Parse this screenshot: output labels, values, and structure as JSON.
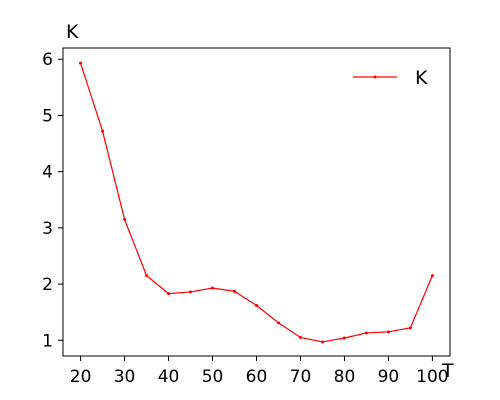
{
  "chart_data": {
    "type": "line",
    "title": "",
    "xlabel": "T",
    "ylabel": "K",
    "xlim": [
      16.0,
      104.0
    ],
    "ylim": [
      0.72,
      6.2
    ],
    "xticks": [
      20,
      30,
      40,
      50,
      60,
      70,
      80,
      90,
      100
    ],
    "yticks": [
      1,
      2,
      3,
      4,
      5,
      6
    ],
    "grid": false,
    "legend_position": "top-right",
    "series": [
      {
        "name": "K",
        "color": "#ff0000",
        "marker": "point",
        "x": [
          20,
          25,
          30,
          35,
          40,
          45,
          50,
          55,
          60,
          65,
          70,
          75,
          80,
          85,
          90,
          95,
          100
        ],
        "y": [
          5.93,
          4.72,
          3.15,
          2.15,
          1.83,
          1.86,
          1.93,
          1.87,
          1.62,
          1.31,
          1.05,
          0.97,
          1.04,
          1.13,
          1.15,
          1.22,
          2.15
        ]
      }
    ]
  }
}
